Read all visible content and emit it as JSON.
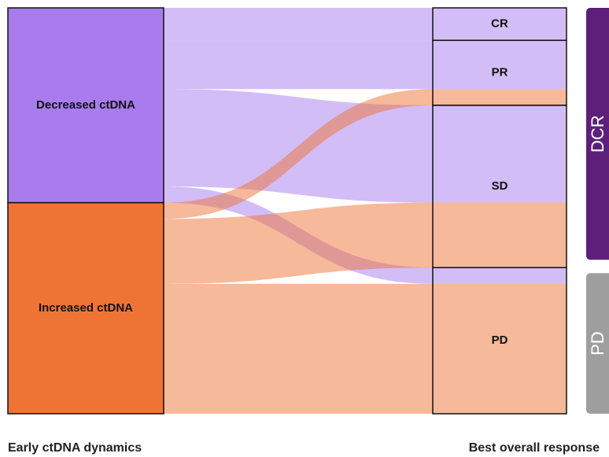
{
  "chart_data": {
    "type": "sankey",
    "x_labels": [
      "Early ctDNA dynamics",
      "Best overall response"
    ],
    "left_nodes": [
      {
        "name": "Decreased ctDNA",
        "color": "#a87ced"
      },
      {
        "name": "Increased ctDNA",
        "color": "#ee7435"
      }
    ],
    "right_nodes": [
      "CR",
      "PR",
      "SD",
      "PD"
    ],
    "flows": [
      {
        "source": 0,
        "target": 0,
        "value": 2
      },
      {
        "source": 0,
        "target": 1,
        "value": 3
      },
      {
        "source": 0,
        "target": 2,
        "value": 6
      },
      {
        "source": 0,
        "target": 3,
        "value": 1
      },
      {
        "source": 1,
        "target": 1,
        "value": 1
      },
      {
        "source": 1,
        "target": 2,
        "value": 4
      },
      {
        "source": 1,
        "target": 3,
        "value": 8
      }
    ],
    "groups": [
      {
        "label": "DCR",
        "color": "#5e1f7a",
        "nodes": [
          0,
          1,
          2
        ]
      },
      {
        "label": "PD",
        "color": "#9e9e9e",
        "nodes": [
          3
        ]
      }
    ]
  }
}
